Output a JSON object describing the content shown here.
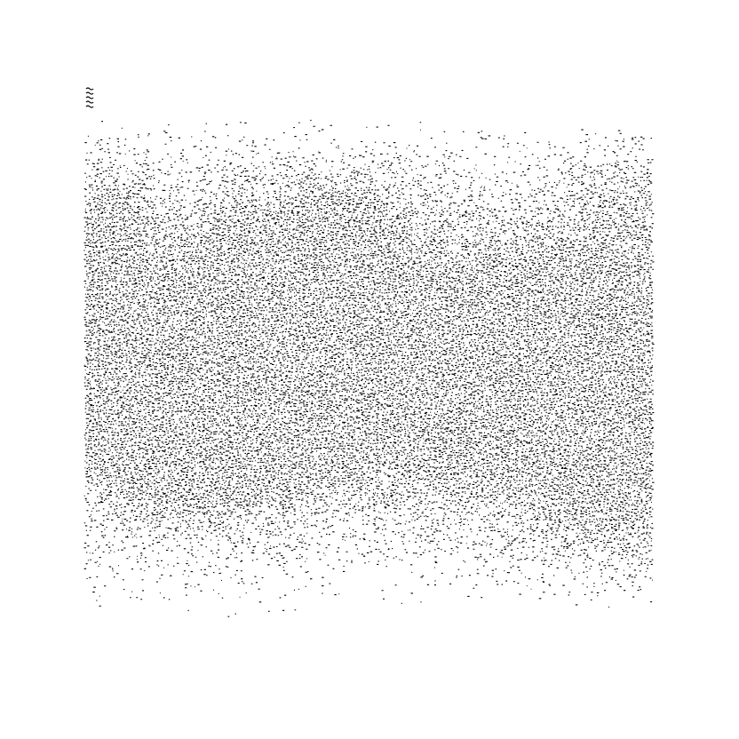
{
  "image": {
    "subject": "stipple-texture",
    "background_color": "#ffffff",
    "ink_color": "#000000"
  }
}
